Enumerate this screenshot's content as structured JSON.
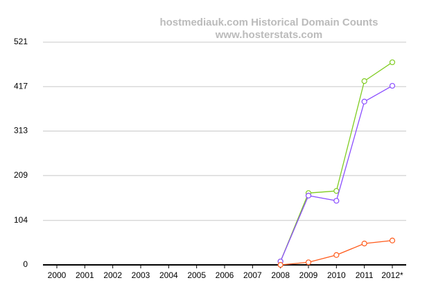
{
  "chart_data": {
    "type": "line",
    "title": "hostmediauk.com Historical Domain Counts",
    "subtitle": "www.hosterstats.com",
    "categories": [
      "2000",
      "2001",
      "2002",
      "2003",
      "2004",
      "2005",
      "2006",
      "2007",
      "2008",
      "2009",
      "2010",
      "2011",
      "2012*"
    ],
    "series": [
      {
        "color": "#80cc22",
        "values": [
          null,
          null,
          null,
          null,
          null,
          null,
          null,
          null,
          8,
          168,
          173,
          430,
          474
        ]
      },
      {
        "color": "#8a4dff",
        "values": [
          null,
          null,
          null,
          null,
          null,
          null,
          null,
          null,
          8,
          162,
          150,
          382,
          419
        ]
      },
      {
        "color": "#ff5a1a",
        "values": [
          null,
          null,
          null,
          null,
          null,
          null,
          null,
          null,
          0,
          6,
          23,
          50,
          57
        ]
      }
    ],
    "ylim": [
      0,
      521
    ],
    "yticks": [
      0,
      104,
      209,
      313,
      417,
      521
    ],
    "grid": true
  }
}
